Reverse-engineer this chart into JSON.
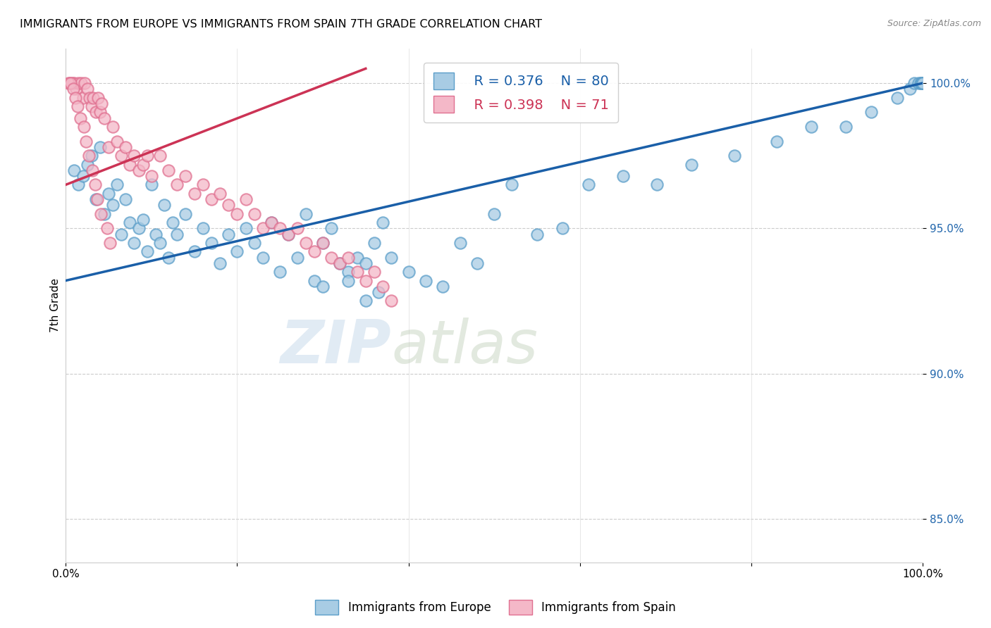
{
  "title": "IMMIGRANTS FROM EUROPE VS IMMIGRANTS FROM SPAIN 7TH GRADE CORRELATION CHART",
  "source": "Source: ZipAtlas.com",
  "ylabel": "7th Grade",
  "y_ticks": [
    85.0,
    90.0,
    95.0,
    100.0
  ],
  "y_tick_labels": [
    "85.0%",
    "90.0%",
    "95.0%",
    "100.0%"
  ],
  "xmin": 0.0,
  "xmax": 100.0,
  "ymin": 83.5,
  "ymax": 101.2,
  "legend_blue_label": "Immigrants from Europe",
  "legend_pink_label": "Immigrants from Spain",
  "r_blue": "R = 0.376",
  "n_blue": "N = 80",
  "r_pink": "R = 0.398",
  "n_pink": "N = 71",
  "blue_color": "#a8cce4",
  "pink_color": "#f4b8c8",
  "blue_edge": "#5b9ec9",
  "pink_edge": "#e07090",
  "trend_blue": "#1a5fa8",
  "trend_pink": "#cc3355",
  "watermark_zip": "ZIP",
  "watermark_atlas": "atlas",
  "blue_trend_x0": 0.0,
  "blue_trend_y0": 93.2,
  "blue_trend_x1": 100.0,
  "blue_trend_y1": 100.0,
  "pink_trend_x0": 0.0,
  "pink_trend_y0": 96.5,
  "pink_trend_x1": 35.0,
  "pink_trend_y1": 100.5,
  "blue_scatter_x": [
    1.0,
    1.5,
    2.0,
    2.5,
    3.0,
    3.5,
    4.0,
    4.5,
    5.0,
    5.5,
    6.0,
    6.5,
    7.0,
    7.5,
    8.0,
    8.5,
    9.0,
    9.5,
    10.0,
    10.5,
    11.0,
    11.5,
    12.0,
    12.5,
    13.0,
    14.0,
    15.0,
    16.0,
    17.0,
    18.0,
    19.0,
    20.0,
    21.0,
    22.0,
    23.0,
    24.0,
    25.0,
    26.0,
    27.0,
    28.0,
    29.0,
    30.0,
    31.0,
    32.0,
    33.0,
    34.0,
    35.0,
    36.0,
    37.0,
    38.0,
    40.0,
    42.0,
    44.0,
    46.0,
    48.0,
    50.0,
    52.0,
    55.0,
    58.0,
    61.0,
    65.0,
    69.0,
    73.0,
    78.0,
    83.0,
    87.0,
    91.0,
    94.0,
    97.0,
    98.5,
    99.0,
    99.5,
    99.7,
    99.8,
    99.9,
    100.0,
    30.0,
    33.0,
    35.0,
    36.5
  ],
  "blue_scatter_y": [
    97.0,
    96.5,
    96.8,
    97.2,
    97.5,
    96.0,
    97.8,
    95.5,
    96.2,
    95.8,
    96.5,
    94.8,
    96.0,
    95.2,
    94.5,
    95.0,
    95.3,
    94.2,
    96.5,
    94.8,
    94.5,
    95.8,
    94.0,
    95.2,
    94.8,
    95.5,
    94.2,
    95.0,
    94.5,
    93.8,
    94.8,
    94.2,
    95.0,
    94.5,
    94.0,
    95.2,
    93.5,
    94.8,
    94.0,
    95.5,
    93.2,
    94.5,
    95.0,
    93.8,
    93.5,
    94.0,
    93.8,
    94.5,
    95.2,
    94.0,
    93.5,
    93.2,
    93.0,
    94.5,
    93.8,
    95.5,
    96.5,
    94.8,
    95.0,
    96.5,
    96.8,
    96.5,
    97.2,
    97.5,
    98.0,
    98.5,
    98.5,
    99.0,
    99.5,
    99.8,
    100.0,
    100.0,
    100.0,
    100.0,
    100.0,
    100.0,
    93.0,
    93.2,
    92.5,
    92.8
  ],
  "pink_scatter_x": [
    0.5,
    0.8,
    1.0,
    1.2,
    1.5,
    1.8,
    2.0,
    2.2,
    2.5,
    2.8,
    3.0,
    3.2,
    3.5,
    3.8,
    4.0,
    4.2,
    4.5,
    5.0,
    5.5,
    6.0,
    6.5,
    7.0,
    7.5,
    8.0,
    8.5,
    9.0,
    9.5,
    10.0,
    11.0,
    12.0,
    13.0,
    14.0,
    15.0,
    16.0,
    17.0,
    18.0,
    19.0,
    20.0,
    21.0,
    22.0,
    23.0,
    24.0,
    25.0,
    26.0,
    27.0,
    28.0,
    29.0,
    30.0,
    31.0,
    32.0,
    33.0,
    34.0,
    35.0,
    36.0,
    37.0,
    38.0,
    0.3,
    0.6,
    0.9,
    1.1,
    1.4,
    1.7,
    2.1,
    2.4,
    2.7,
    3.1,
    3.4,
    3.7,
    4.1,
    4.8,
    5.2
  ],
  "pink_scatter_y": [
    100.0,
    100.0,
    100.0,
    99.8,
    100.0,
    100.0,
    99.5,
    100.0,
    99.8,
    99.5,
    99.2,
    99.5,
    99.0,
    99.5,
    99.0,
    99.3,
    98.8,
    97.8,
    98.5,
    98.0,
    97.5,
    97.8,
    97.2,
    97.5,
    97.0,
    97.2,
    97.5,
    96.8,
    97.5,
    97.0,
    96.5,
    96.8,
    96.2,
    96.5,
    96.0,
    96.2,
    95.8,
    95.5,
    96.0,
    95.5,
    95.0,
    95.2,
    95.0,
    94.8,
    95.0,
    94.5,
    94.2,
    94.5,
    94.0,
    93.8,
    94.0,
    93.5,
    93.2,
    93.5,
    93.0,
    92.5,
    100.0,
    100.0,
    99.8,
    99.5,
    99.2,
    98.8,
    98.5,
    98.0,
    97.5,
    97.0,
    96.5,
    96.0,
    95.5,
    95.0,
    94.5
  ]
}
